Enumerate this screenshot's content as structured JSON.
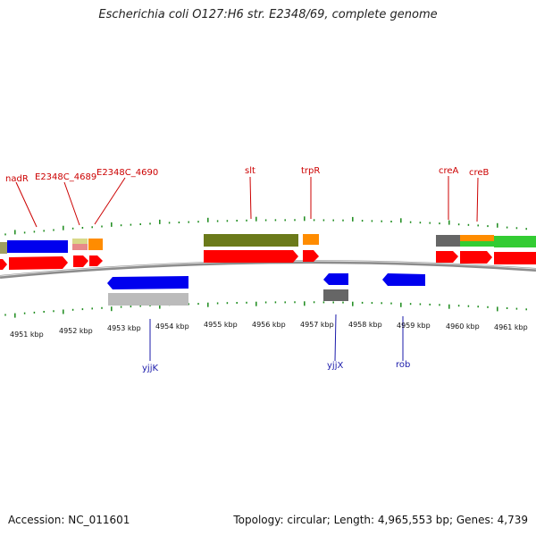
{
  "header": {
    "title": "Escherichia coli O127:H6 str. E2348/69, complete genome"
  },
  "footer": {
    "accession": "Accession: NC_011601",
    "summary": "Topology: circular; Length: 4,965,553 bp; Genes: 4,739"
  },
  "colors": {
    "backbone": "#8c8c8c",
    "tick": "#1a8a1a",
    "label_top": "#cc0000",
    "label_bottom": "#1a1aaa",
    "cds_red": "#ff0000",
    "cds_blue": "#0000ee",
    "olive": "#6b7a1a",
    "orange": "#ff8c00",
    "green": "#33cc33",
    "gray": "#666666",
    "lightgray": "#bbbbbb",
    "pink": "#e88a8a",
    "khaki": "#d8d888"
  },
  "axis": {
    "labels": [
      "4951 kbp",
      "4952 kbp",
      "4953 kbp",
      "4954 kbp",
      "4955 kbp",
      "4956 kbp",
      "4957 kbp",
      "4958 kbp",
      "4959 kbp",
      "4960 kbp",
      "4961 kbp"
    ]
  },
  "top_labels": [
    "nadR",
    "E2348C_4689",
    "E2348C_4690",
    "slt",
    "trpR",
    "creA",
    "creB"
  ],
  "bottom_labels": [
    "yjjK",
    "yjjX",
    "rob"
  ]
}
